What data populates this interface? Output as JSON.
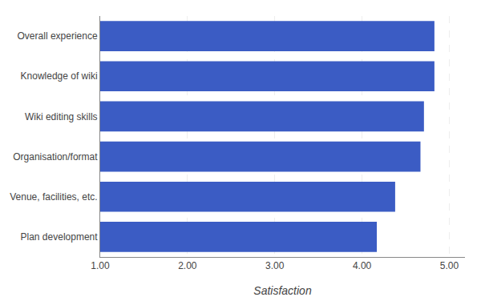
{
  "chart_data": {
    "type": "bar",
    "orientation": "horizontal",
    "categories": [
      "Plan development",
      "Venue, facilities, etc.",
      "Organisation/format",
      "Wiki editing skills",
      "Knowledge of wiki",
      "Overall experience"
    ],
    "values": [
      4.17,
      4.38,
      4.67,
      4.71,
      4.83,
      4.83
    ],
    "color": "#3b5cc4",
    "xlabel": "Satisfaction",
    "xlim": [
      1.0,
      5.18
    ],
    "xticks": [
      {
        "value": 1.0,
        "label": "1.00"
      },
      {
        "value": 2.0,
        "label": "2.00"
      },
      {
        "value": 3.0,
        "label": "3.00"
      },
      {
        "value": 4.0,
        "label": "4.00"
      },
      {
        "value": 5.0,
        "label": "5.00"
      }
    ],
    "grid": true
  }
}
